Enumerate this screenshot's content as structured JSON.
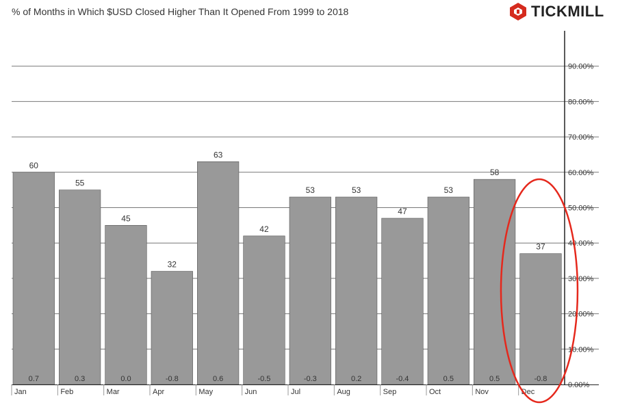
{
  "header": {
    "title": "% of Months in Which $USD Closed Higher Than It Opened From 1999 to 2018",
    "brand": "TICKMILL"
  },
  "colors": {
    "bar": "#999999",
    "grid": "#777777",
    "axis": "#222222",
    "highlight": "#e5281c",
    "brand_red": "#d52b1e"
  },
  "chart_data": {
    "type": "bar",
    "title": "% of Months in Which $USD Closed Higher Than It Opened From 1999 to 2018",
    "categories": [
      "Jan",
      "Feb",
      "Mar",
      "Apr",
      "May",
      "Jun",
      "Jul",
      "Aug",
      "Sep",
      "Oct",
      "Nov",
      "Dec"
    ],
    "values": [
      60,
      55,
      45,
      32,
      63,
      42,
      53,
      53,
      47,
      53,
      58,
      37
    ],
    "secondary_labels": [
      "0.7",
      "0.3",
      "0.0",
      "-0.8",
      "0.6",
      "-0.5",
      "-0.3",
      "0.2",
      "-0.4",
      "0.5",
      "0.5",
      "-0.8"
    ],
    "ylim": [
      0,
      100
    ],
    "y_ticks": [
      "0.00%",
      "10.00%",
      "20.00%",
      "30.00%",
      "40.00%",
      "50.00%",
      "60.00%",
      "70.00%",
      "80.00%",
      "90.00%"
    ],
    "y_axis_side": "right",
    "grid": true,
    "highlighted_category": "Dec"
  }
}
